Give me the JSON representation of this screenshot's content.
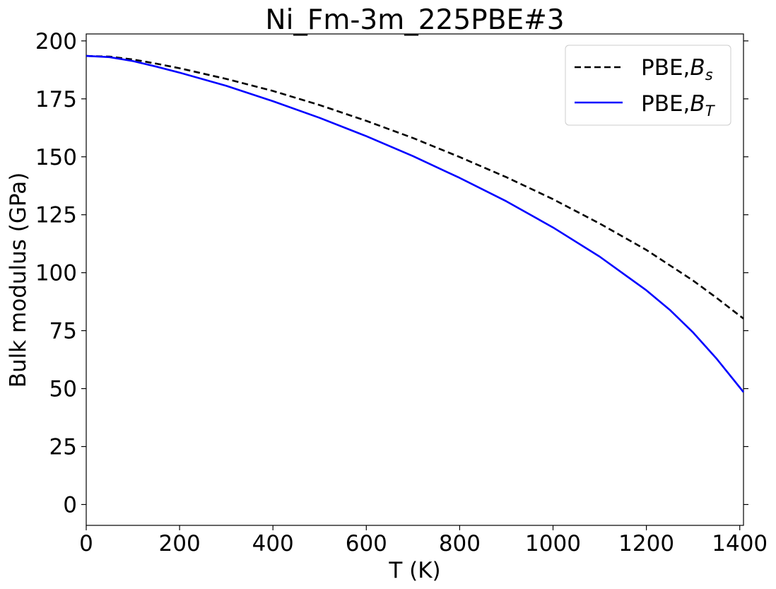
{
  "chart_data": {
    "type": "line",
    "title": "Ni_Fm-3m_225PBE#3",
    "xlabel": "T (K)",
    "ylabel": "Bulk modulus (GPa)",
    "xlim": [
      0,
      1408
    ],
    "ylim": [
      -9,
      203
    ],
    "x_ticks": [
      "0",
      "200",
      "400",
      "600",
      "800",
      "1000",
      "1200",
      "1400"
    ],
    "y_ticks": [
      "0",
      "25",
      "50",
      "75",
      "100",
      "125",
      "150",
      "175",
      "200"
    ],
    "grid": false,
    "legend_placement": "upper right",
    "series": [
      {
        "name": "PBE,B_s",
        "legend_main": "PBE,",
        "legend_italic": "B",
        "legend_sub": "s",
        "color": "#000000",
        "style": "dashed",
        "x": [
          0,
          50,
          100,
          150,
          200,
          300,
          400,
          500,
          600,
          700,
          800,
          900,
          1000,
          1100,
          1200,
          1300,
          1350,
          1408
        ],
        "y": [
          193.5,
          193.2,
          192.0,
          190.2,
          188.2,
          183.6,
          178.4,
          172.3,
          165.5,
          158.1,
          149.9,
          141.2,
          131.7,
          121.2,
          109.8,
          96.6,
          89.2,
          80.2
        ]
      },
      {
        "name": "PBE,B_T",
        "legend_main": "PBE,",
        "legend_italic": "B",
        "legend_sub": "T",
        "color": "#0000ff",
        "style": "solid",
        "x": [
          0,
          50,
          100,
          150,
          200,
          300,
          400,
          500,
          600,
          700,
          800,
          900,
          1000,
          1100,
          1200,
          1250,
          1300,
          1350,
          1408
        ],
        "y": [
          193.5,
          193.0,
          191.3,
          188.9,
          186.3,
          180.6,
          174.0,
          166.8,
          158.9,
          150.3,
          140.9,
          130.8,
          119.5,
          106.9,
          92.4,
          84.0,
          74.2,
          63.0,
          48.5
        ]
      }
    ]
  }
}
